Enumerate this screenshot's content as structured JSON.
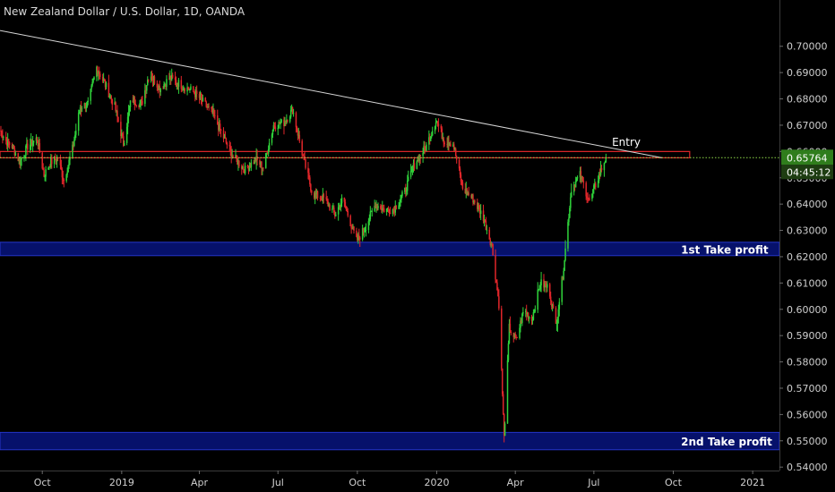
{
  "colors": {
    "background": "#000000",
    "up_candle": "#2fd13a",
    "down_candle": "#e0262a",
    "trendline": "#d6d6d6",
    "entry_zone": "#e0262a",
    "profit_zone_fill": "#06116b",
    "profit_zone_border": "#2535c8",
    "price_line": "#8fd84a",
    "axis_text": "#cfcfcf",
    "price_label_bg": "#2f7d1c"
  },
  "chart_data": {
    "type": "candlestick",
    "title": "New Zealand Dollar / U.S. Dollar, 1D, OANDA",
    "x_tick_labels": [
      "Oct",
      "2019",
      "Apr",
      "Jul",
      "Oct",
      "2020",
      "Apr",
      "Jul",
      "Oct",
      "2021"
    ],
    "y_tick_labels": [
      "0.70000",
      "0.69000",
      "0.68000",
      "0.67000",
      "0.66000",
      "0.65000",
      "0.64000",
      "0.63000",
      "0.62000",
      "0.61000",
      "0.60000",
      "0.59000",
      "0.58000",
      "0.57000",
      "0.56000",
      "0.55000",
      "0.54000"
    ],
    "ylim": [
      0.5387,
      0.7176
    ],
    "date_range": [
      "2018-08-13",
      "2021-02-01"
    ],
    "last_price": "0.65764",
    "countdown": "04:45:12",
    "price_path": [
      [
        "2018-08-13",
        0.668
      ],
      [
        "2018-08-20",
        0.664
      ],
      [
        "2018-08-27",
        0.662
      ],
      [
        "2018-09-05",
        0.656
      ],
      [
        "2018-09-14",
        0.662
      ],
      [
        "2018-09-25",
        0.665
      ],
      [
        "2018-10-03",
        0.651
      ],
      [
        "2018-10-11",
        0.656
      ],
      [
        "2018-10-19",
        0.6575
      ],
      [
        "2018-10-26",
        0.649
      ],
      [
        "2018-11-05",
        0.661
      ],
      [
        "2018-11-14",
        0.677
      ],
      [
        "2018-11-23",
        0.678
      ],
      [
        "2018-12-03",
        0.692
      ],
      [
        "2018-12-12",
        0.686
      ],
      [
        "2018-12-24",
        0.677
      ],
      [
        "2019-01-03",
        0.663
      ],
      [
        "2019-01-12",
        0.68
      ],
      [
        "2019-01-24",
        0.678
      ],
      [
        "2019-02-02",
        0.69
      ],
      [
        "2019-02-14",
        0.684
      ],
      [
        "2019-02-26",
        0.688
      ],
      [
        "2019-03-12",
        0.685
      ],
      [
        "2019-03-24",
        0.683
      ],
      [
        "2019-04-02",
        0.68
      ],
      [
        "2019-04-17",
        0.674
      ],
      [
        "2019-04-28",
        0.666
      ],
      [
        "2019-05-10",
        0.658
      ],
      [
        "2019-05-24",
        0.653
      ],
      [
        "2019-06-05",
        0.657
      ],
      [
        "2019-06-14",
        0.654
      ],
      [
        "2019-06-26",
        0.67
      ],
      [
        "2019-07-08",
        0.671
      ],
      [
        "2019-07-18",
        0.676
      ],
      [
        "2019-07-30",
        0.658
      ],
      [
        "2019-08-10",
        0.644
      ],
      [
        "2019-08-24",
        0.642
      ],
      [
        "2019-09-05",
        0.636
      ],
      [
        "2019-09-14",
        0.642
      ],
      [
        "2019-09-30",
        0.626
      ],
      [
        "2019-10-10",
        0.631
      ],
      [
        "2019-10-22",
        0.64
      ],
      [
        "2019-11-01",
        0.638
      ],
      [
        "2019-11-12",
        0.638
      ],
      [
        "2019-11-24",
        0.644
      ],
      [
        "2019-12-07",
        0.656
      ],
      [
        "2019-12-20",
        0.662
      ],
      [
        "2019-12-31",
        0.672
      ],
      [
        "2020-01-10",
        0.664
      ],
      [
        "2020-01-20",
        0.663
      ],
      [
        "2020-01-31",
        0.646
      ],
      [
        "2020-02-12",
        0.642
      ],
      [
        "2020-02-24",
        0.635
      ],
      [
        "2020-03-05",
        0.624
      ],
      [
        "2020-03-13",
        0.602
      ],
      [
        "2020-03-19",
        0.551
      ],
      [
        "2020-03-25",
        0.593
      ],
      [
        "2020-04-02",
        0.588
      ],
      [
        "2020-04-11",
        0.6
      ],
      [
        "2020-04-20",
        0.596
      ],
      [
        "2020-04-30",
        0.61
      ],
      [
        "2020-05-10",
        0.608
      ],
      [
        "2020-05-18",
        0.594
      ],
      [
        "2020-05-26",
        0.613
      ],
      [
        "2020-06-05",
        0.646
      ],
      [
        "2020-06-15",
        0.651
      ],
      [
        "2020-06-26",
        0.641
      ],
      [
        "2020-07-07",
        0.651
      ],
      [
        "2020-07-15",
        0.6576
      ]
    ],
    "trendline": {
      "start": [
        "2018-08-13",
        0.706
      ],
      "end": [
        "2020-09-18",
        0.6576
      ]
    },
    "zones": [
      {
        "label": "Entry",
        "y_top": 0.66,
        "y_bottom": 0.6576,
        "start": "2018-08-13",
        "end": "2020-10-20",
        "label_date": "2020-07-22",
        "label_y": 0.6635
      },
      {
        "label": "1st Take profit",
        "y_top": 0.6255,
        "y_bottom": 0.6204,
        "start": "2018-08-13",
        "end": "2021-02-01",
        "label_date": "2020-10-10",
        "label_y": 0.6225
      },
      {
        "label": "2nd Take profit",
        "y_top": 0.5532,
        "y_bottom": 0.5466,
        "start": "2018-08-13",
        "end": "2021-02-01",
        "label_date": "2020-10-10",
        "label_y": 0.5496
      }
    ],
    "grid": false
  }
}
